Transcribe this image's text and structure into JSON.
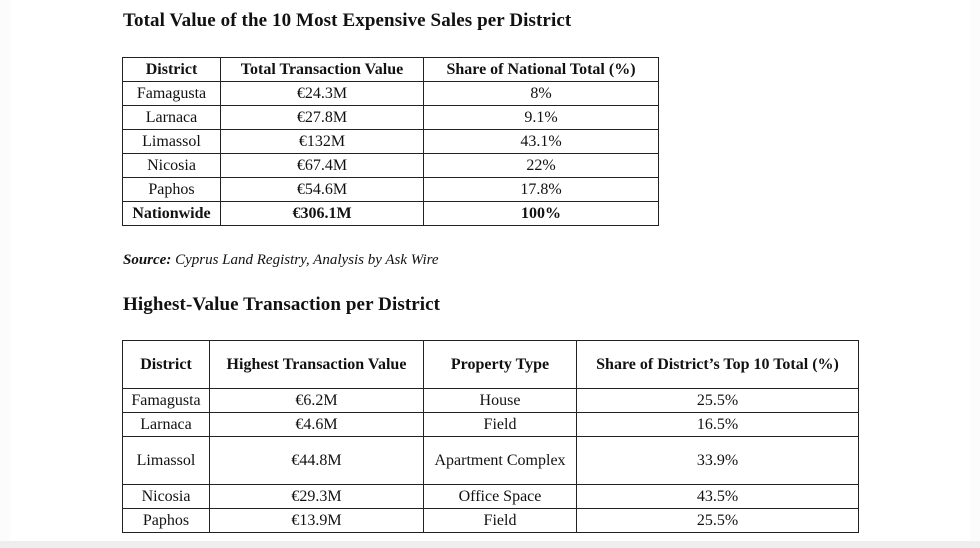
{
  "title1": "Total Value of the 10 Most Expensive Sales per District",
  "table1": {
    "headers": [
      "District",
      "Total Transaction Value",
      "Share of National Total (%)"
    ],
    "rows": [
      [
        "Famagusta",
        "€24.3M",
        "8%"
      ],
      [
        "Larnaca",
        "€27.8M",
        "9.1%"
      ],
      [
        "Limassol",
        "€132M",
        "43.1%"
      ],
      [
        "Nicosia",
        "€67.4M",
        "22%"
      ],
      [
        "Paphos",
        "€54.6M",
        "17.8%"
      ],
      [
        "Nationwide",
        "€306.1M",
        "100%"
      ]
    ]
  },
  "source": {
    "label": "Source:",
    "text": " Cyprus Land Registry, Analysis by Ask Wire"
  },
  "title2": "Highest-Value Transaction per District",
  "table2": {
    "headers": [
      "District",
      "Highest Transaction Value",
      "Property Type",
      "Share of District’s Top 10 Total (%)"
    ],
    "rows": [
      [
        "Famagusta",
        "€6.2M",
        "House",
        "25.5%"
      ],
      [
        "Larnaca",
        "€4.6M",
        "Field",
        "16.5%"
      ],
      [
        "Limassol",
        "€44.8M",
        "Apartment Complex",
        "33.9%"
      ],
      [
        "Nicosia",
        "€29.3M",
        "Office Space",
        "43.5%"
      ],
      [
        "Paphos",
        "€13.9M",
        "Field",
        "25.5%"
      ]
    ]
  }
}
